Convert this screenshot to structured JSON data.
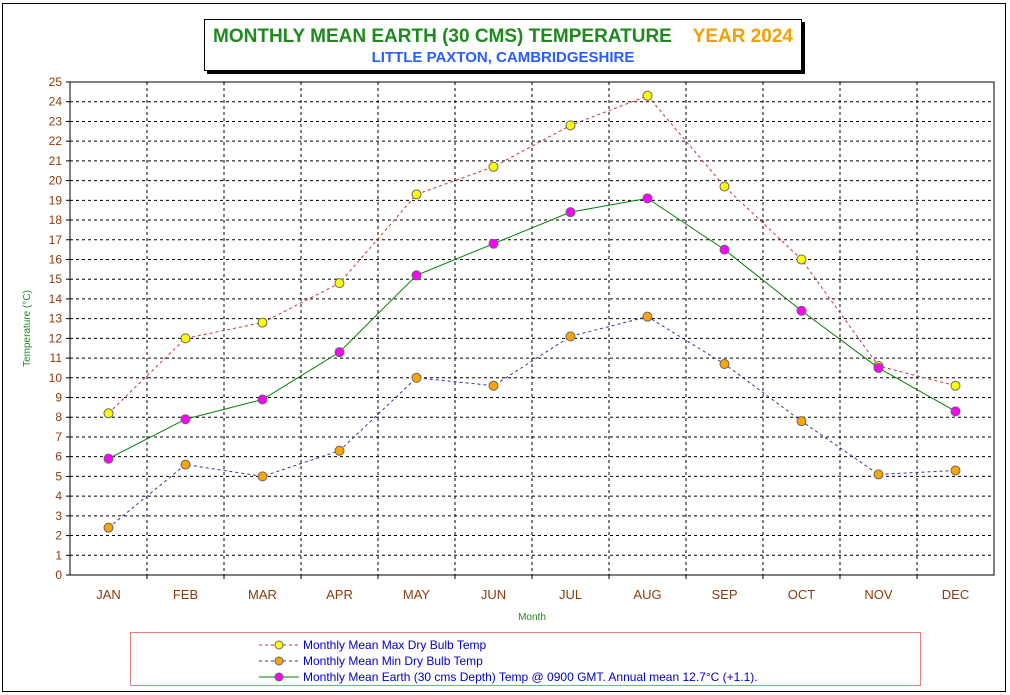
{
  "title": {
    "main": "MONTHLY MEAN  EARTH (30 CMS) TEMPERATURE",
    "year": "YEAR 2024",
    "subtitle": "LITTLE PAXTON, CAMBRIDGESHIRE"
  },
  "colors": {
    "title_main": "#1e8a1e",
    "title_year": "#f5a000",
    "subtitle": "#2a5cff",
    "axis_labels": "#8b3a0a",
    "max_series": "#ffff00",
    "max_line": "#cc3333",
    "min_series": "#ffa500",
    "min_line": "#3333aa",
    "earth_series": "#ff00ff",
    "earth_line": "#008000"
  },
  "chart_data": {
    "type": "line",
    "ylabel": "Temperature (°C)",
    "xlabel": "Month",
    "ylim": [
      0,
      25
    ],
    "ytick_step": 1,
    "grid": true,
    "legend_position": "bottom",
    "categories": [
      "JAN",
      "FEB",
      "MAR",
      "APR",
      "MAY",
      "JUN",
      "JUL",
      "AUG",
      "SEP",
      "OCT",
      "NOV",
      "DEC"
    ],
    "series": [
      {
        "name": "Monthly Mean Max Dry Bulb Temp",
        "line_style": "dashed",
        "marker_color": "#ffff00",
        "line_color": "#cc3333",
        "values": [
          8.2,
          12.0,
          12.8,
          14.8,
          19.3,
          20.7,
          22.8,
          24.3,
          19.7,
          16.0,
          10.6,
          9.6
        ]
      },
      {
        "name": "Monthly Mean Min Dry Bulb Temp",
        "line_style": "dashed",
        "marker_color": "#ffa500",
        "line_color": "#3333aa",
        "values": [
          2.4,
          5.6,
          5.0,
          6.3,
          10.0,
          9.6,
          12.1,
          13.1,
          10.7,
          7.8,
          5.1,
          5.3
        ]
      },
      {
        "name": "Monthly Mean Earth (30 cms Depth) Temp @ 0900 GMT. Annual mean 12.7°C (+1.1).",
        "line_style": "solid",
        "marker_color": "#ff00ff",
        "line_color": "#008000",
        "values": [
          5.9,
          7.9,
          8.9,
          11.3,
          15.2,
          16.8,
          18.4,
          19.1,
          16.5,
          13.4,
          10.5,
          8.3
        ]
      }
    ]
  }
}
